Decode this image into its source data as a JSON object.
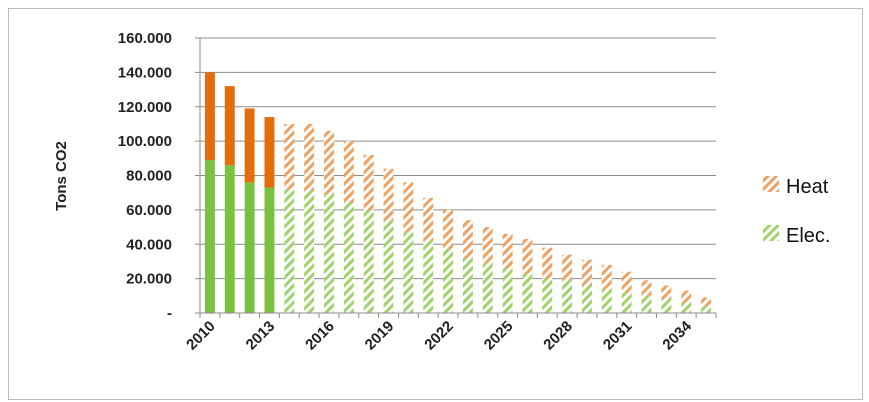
{
  "chart_data": {
    "type": "bar",
    "stacked": true,
    "x": [
      2010,
      2011,
      2012,
      2013,
      2014,
      2015,
      2016,
      2017,
      2018,
      2019,
      2020,
      2021,
      2022,
      2023,
      2024,
      2025,
      2026,
      2027,
      2028,
      2029,
      2030,
      2031,
      2032,
      2033,
      2034,
      2035
    ],
    "x_tick_labels": [
      "2010",
      "2013",
      "2016",
      "2019",
      "2022",
      "2025",
      "2028",
      "2031",
      "2034"
    ],
    "y_tick_labels": [
      "-",
      "20.000",
      "40.000",
      "60.000",
      "80.000",
      "100.000",
      "120.000",
      "140.000",
      "160.000"
    ],
    "ylim": [
      0,
      160000
    ],
    "ylabel": "Tons CO2",
    "grid": true,
    "legend_position": "right",
    "series": [
      {
        "name": "Elec.",
        "color": "#7ac142",
        "values": [
          89000,
          86000,
          76000,
          73000,
          72000,
          71000,
          69000,
          64000,
          60000,
          54000,
          47000,
          42000,
          37000,
          32000,
          29000,
          26000,
          23000,
          20000,
          19000,
          16000,
          14000,
          12000,
          10000,
          8000,
          6000,
          4000
        ],
        "hatched_from_index": 4
      },
      {
        "name": "Heat",
        "color": "#e46c0a",
        "values": [
          51000,
          46000,
          43000,
          41000,
          38000,
          39000,
          37000,
          36000,
          32000,
          30000,
          29000,
          25000,
          23000,
          22000,
          21000,
          20000,
          20000,
          18000,
          15000,
          15000,
          14000,
          12000,
          9000,
          8000,
          7000,
          5000
        ],
        "hatched_from_index": 4
      }
    ]
  }
}
